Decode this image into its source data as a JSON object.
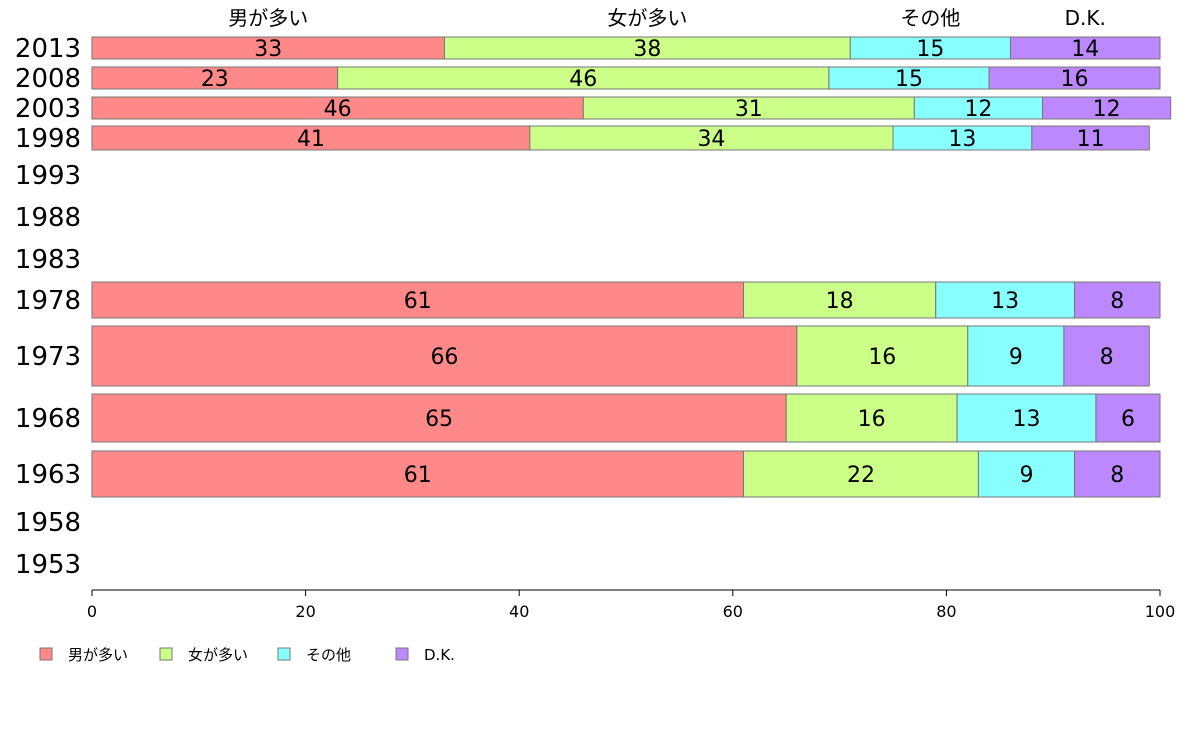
{
  "chart_data": {
    "type": "bar",
    "orientation": "horizontal",
    "stacked": true,
    "categories": [
      "2013",
      "2008",
      "2003",
      "1998",
      "1993",
      "1988",
      "1983",
      "1978",
      "1973",
      "1968",
      "1963",
      "1958",
      "1953"
    ],
    "series": [
      {
        "name": "男が多い",
        "color": "#ff8888",
        "values": [
          33,
          23,
          46,
          41,
          null,
          null,
          null,
          61,
          66,
          65,
          61,
          null,
          null
        ]
      },
      {
        "name": "女が多い",
        "color": "#ccff88",
        "values": [
          38,
          46,
          31,
          34,
          null,
          null,
          null,
          18,
          16,
          16,
          22,
          null,
          null
        ]
      },
      {
        "name": "その他",
        "color": "#88ffff",
        "values": [
          15,
          15,
          12,
          13,
          null,
          null,
          null,
          13,
          9,
          13,
          9,
          null,
          null
        ]
      },
      {
        "name": "D.K.",
        "color": "#bb88ff",
        "values": [
          14,
          16,
          12,
          11,
          null,
          null,
          null,
          8,
          8,
          6,
          8,
          null,
          null
        ]
      }
    ],
    "xlim": [
      0,
      100
    ],
    "xticks": [
      "0",
      "20",
      "40",
      "60",
      "80",
      "100"
    ],
    "top_labels": [
      "男が多い",
      "女が多い",
      "その他",
      "D.K."
    ],
    "legend": {
      "position": "bottom-left",
      "entries": [
        "男が多い",
        "女が多い",
        "その他",
        "D.K."
      ]
    },
    "grid": false
  }
}
